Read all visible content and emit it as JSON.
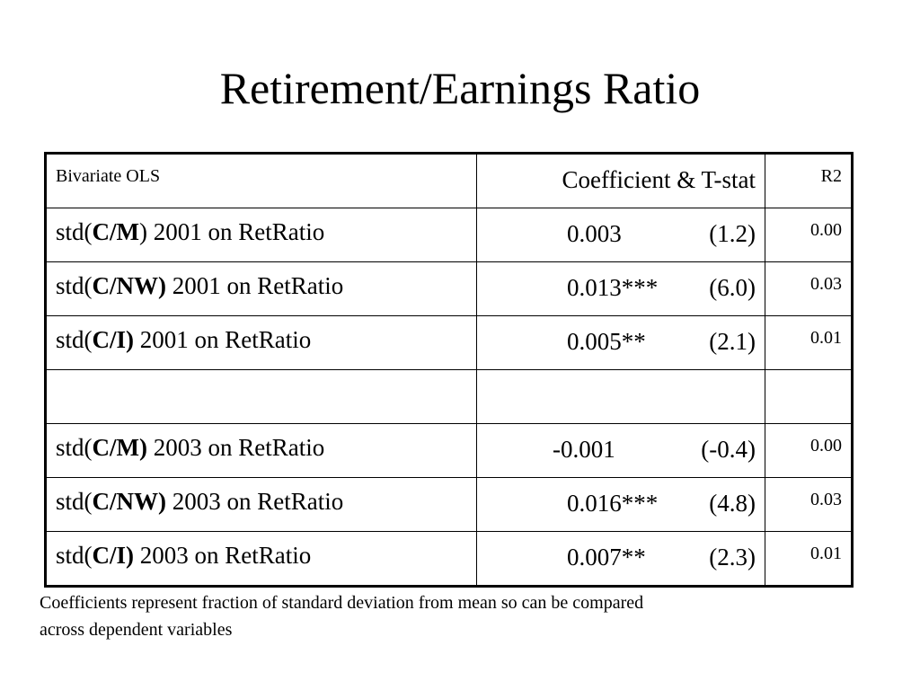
{
  "title": "Retirement/Earnings Ratio",
  "table": {
    "headers": [
      "Bivariate OLS",
      "Coefficient & T-stat",
      "R2"
    ],
    "rows": [
      {
        "prefix": "std(",
        "bold": "C/M",
        "suffix": ") 2001 on RetRatio",
        "coef": "0.003",
        "tstat": "(1.2)",
        "r2": "0.00"
      },
      {
        "prefix": "std(",
        "bold": "C/NW)",
        "suffix": " 2001 on RetRatio",
        "coef": "0.013***",
        "tstat": "(6.0)",
        "r2": "0.03"
      },
      {
        "prefix": "std(",
        "bold": "C/I)",
        "suffix": " 2001 on RetRatio",
        "coef": "0.005**",
        "tstat": "(2.1)",
        "r2": "0.01"
      },
      {
        "prefix": "",
        "bold": "",
        "suffix": "",
        "coef": "",
        "tstat": "",
        "r2": ""
      },
      {
        "prefix": "std(",
        "bold": "C/M)",
        "suffix": " 2003 on RetRatio",
        "coef": "-0.001",
        "tstat": "(-0.4)",
        "r2": "0.00"
      },
      {
        "prefix": "std(",
        "bold": "C/NW)",
        "suffix": " 2003 on RetRatio",
        "coef": "0.016***",
        "tstat": "(4.8)",
        "r2": "0.03"
      },
      {
        "prefix": "std(",
        "bold": "C/I)",
        "suffix": " 2003 on RetRatio",
        "coef": "0.007**",
        "tstat": "(2.3)",
        "r2": "0.01"
      }
    ]
  },
  "footnote": {
    "line1": "Coefficients represent fraction of standard deviation from mean so can be compared",
    "line2": "across dependent variables"
  }
}
